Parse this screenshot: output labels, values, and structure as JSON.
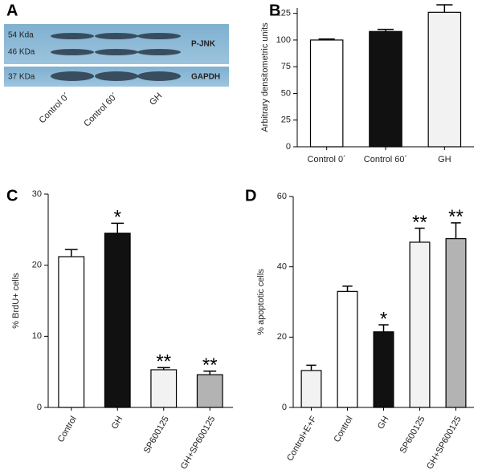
{
  "blot": {
    "label": "A",
    "markers": [
      "54 Kda",
      "46 KDa",
      "37 KDa"
    ],
    "proteins": [
      "P-JNK",
      "GAPDH"
    ],
    "lanes": [
      "Control 0´",
      "Control 60´",
      "GH"
    ]
  },
  "chart_data": [
    {
      "type": "bar",
      "label": "B",
      "ylabel": "Arbitrary densitometric units",
      "categories": [
        "Control 0´",
        "Control 60´",
        "GH"
      ],
      "values": [
        100,
        108,
        126
      ],
      "errors": [
        1,
        2,
        7
      ],
      "colors": [
        "#ffffff",
        "#111111",
        "#f2f2f2"
      ],
      "ylim": [
        0,
        130
      ],
      "yticks": [
        0,
        25,
        50,
        75,
        100,
        125
      ]
    },
    {
      "type": "bar",
      "label": "C",
      "ylabel": "% BrdU+ cells",
      "categories": [
        "Control",
        "GH",
        "SP600125",
        "GH+SP600125"
      ],
      "values": [
        21.2,
        24.5,
        5.3,
        4.6
      ],
      "errors": [
        1,
        1.4,
        0.3,
        0.5
      ],
      "annotations": [
        null,
        "*",
        "**",
        "**"
      ],
      "colors": [
        "#ffffff",
        "#111111",
        "#f2f2f2",
        "#b3b3b3"
      ],
      "ylim": [
        0,
        30
      ],
      "yticks": [
        0,
        10,
        20,
        30
      ]
    },
    {
      "type": "bar",
      "label": "D",
      "ylabel": "% apoptotic cells",
      "categories": [
        "Control+E+F",
        "Control",
        "GH",
        "SP600125",
        "GH+SP600125"
      ],
      "values": [
        10.5,
        33,
        21.5,
        47,
        48
      ],
      "errors": [
        1.5,
        1.5,
        2,
        4,
        4.5
      ],
      "annotations": [
        null,
        null,
        "*",
        "**",
        "**"
      ],
      "colors": [
        "#f2f2f2",
        "#ffffff",
        "#111111",
        "#f2f2f2",
        "#b3b3b3"
      ],
      "ylim": [
        0,
        60
      ],
      "yticks": [
        0,
        20,
        40,
        60
      ]
    }
  ]
}
